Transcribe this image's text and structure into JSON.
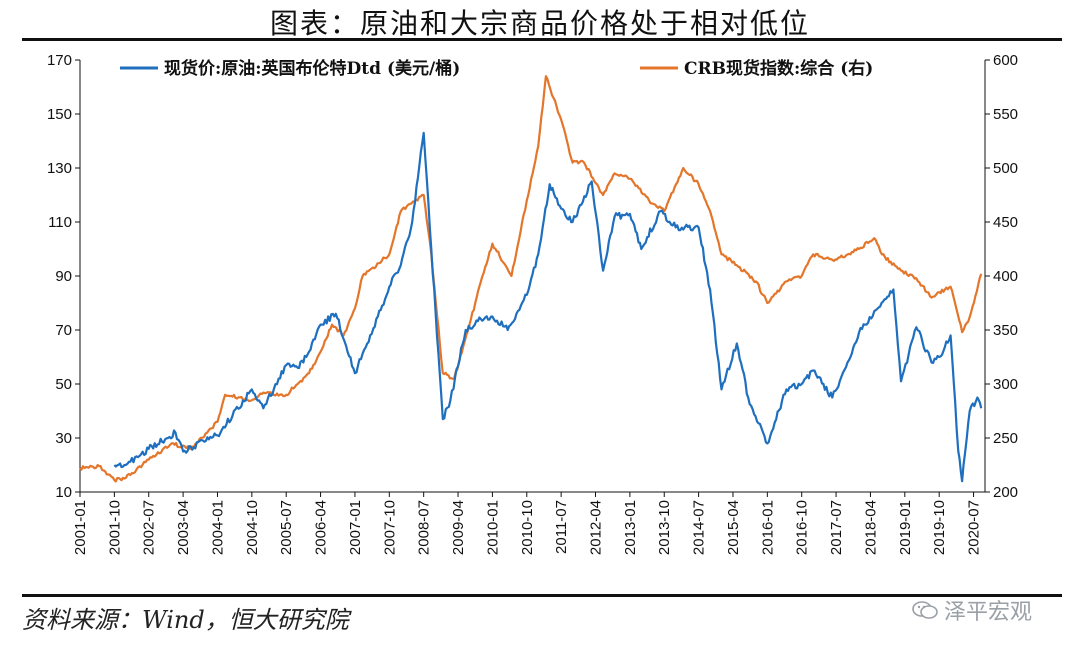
{
  "header": {
    "title": "图表：原油和大宗商品价格处于相对低位"
  },
  "footer": {
    "source": "资料来源：Wind，恒大研究院",
    "watermark": "泽平宏观"
  },
  "chart_data": {
    "type": "line",
    "legend_placement": "top",
    "grid": false,
    "x_ticks": [
      "2001-01",
      "2001-10",
      "2002-07",
      "2003-04",
      "2004-01",
      "2004-10",
      "2005-07",
      "2006-04",
      "2007-01",
      "2007-10",
      "2008-07",
      "2009-04",
      "2010-01",
      "2010-10",
      "2011-07",
      "2012-04",
      "2013-01",
      "2013-10",
      "2014-07",
      "2015-04",
      "2016-01",
      "2016-10",
      "2017-07",
      "2018-04",
      "2019-01",
      "2019-10",
      "2020-07"
    ],
    "y_left": {
      "min": 10,
      "max": 170,
      "ticks": [
        "10",
        "30",
        "50",
        "70",
        "90",
        "110",
        "130",
        "150",
        "170"
      ]
    },
    "y_right": {
      "min": 200,
      "max": 600,
      "ticks": [
        "200",
        "250",
        "300",
        "350",
        "400",
        "450",
        "500",
        "550",
        "600"
      ]
    },
    "series": [
      {
        "name": "现货价:原油:英国布伦特Dtd (美元/桶)",
        "axis": "left",
        "color": "#1f6fbf",
        "points": [
          [
            "2001-10",
            20
          ],
          [
            "2002-01",
            20
          ],
          [
            "2002-07",
            26
          ],
          [
            "2003-02",
            32
          ],
          [
            "2003-04",
            25
          ],
          [
            "2003-10",
            29
          ],
          [
            "2004-01",
            31
          ],
          [
            "2004-10",
            48
          ],
          [
            "2005-01",
            41
          ],
          [
            "2005-07",
            57
          ],
          [
            "2005-10",
            56
          ],
          [
            "2006-01",
            62
          ],
          [
            "2006-04",
            72
          ],
          [
            "2006-08",
            76
          ],
          [
            "2007-01",
            54
          ],
          [
            "2007-07",
            75
          ],
          [
            "2007-10",
            86
          ],
          [
            "2008-01",
            94
          ],
          [
            "2008-04",
            110
          ],
          [
            "2008-07",
            143
          ],
          [
            "2008-09",
            100
          ],
          [
            "2008-12",
            37
          ],
          [
            "2009-02",
            44
          ],
          [
            "2009-06",
            70
          ],
          [
            "2009-10",
            74
          ],
          [
            "2010-01",
            75
          ],
          [
            "2010-05",
            70
          ],
          [
            "2010-10",
            83
          ],
          [
            "2011-01",
            98
          ],
          [
            "2011-04",
            124
          ],
          [
            "2011-07",
            115
          ],
          [
            "2011-10",
            110
          ],
          [
            "2012-03",
            125
          ],
          [
            "2012-06",
            92
          ],
          [
            "2012-09",
            112
          ],
          [
            "2013-01",
            113
          ],
          [
            "2013-04",
            100
          ],
          [
            "2013-09",
            114
          ],
          [
            "2014-01",
            108
          ],
          [
            "2014-07",
            108
          ],
          [
            "2014-10",
            85
          ],
          [
            "2015-01",
            48
          ],
          [
            "2015-05",
            65
          ],
          [
            "2015-08",
            45
          ],
          [
            "2016-01",
            28
          ],
          [
            "2016-06",
            48
          ],
          [
            "2016-10",
            50
          ],
          [
            "2017-01",
            55
          ],
          [
            "2017-06",
            45
          ],
          [
            "2017-10",
            58
          ],
          [
            "2018-01",
            69
          ],
          [
            "2018-05",
            77
          ],
          [
            "2018-10",
            85
          ],
          [
            "2018-12",
            51
          ],
          [
            "2019-04",
            71
          ],
          [
            "2019-08",
            58
          ],
          [
            "2019-10",
            60
          ],
          [
            "2020-01",
            68
          ],
          [
            "2020-03",
            25
          ],
          [
            "2020-04",
            14
          ],
          [
            "2020-06",
            40
          ],
          [
            "2020-08",
            45
          ],
          [
            "2020-09",
            41
          ]
        ]
      },
      {
        "name": "CRB现货指数:综合 (右)",
        "axis": "right",
        "color": "#e4762b",
        "points": [
          [
            "2001-01",
            222
          ],
          [
            "2001-06",
            224
          ],
          [
            "2001-10",
            211
          ],
          [
            "2002-01",
            213
          ],
          [
            "2002-07",
            230
          ],
          [
            "2003-01",
            245
          ],
          [
            "2003-06",
            240
          ],
          [
            "2004-01",
            265
          ],
          [
            "2004-03",
            290
          ],
          [
            "2004-10",
            285
          ],
          [
            "2005-01",
            292
          ],
          [
            "2005-07",
            290
          ],
          [
            "2005-10",
            300
          ],
          [
            "2006-01",
            310
          ],
          [
            "2006-04",
            330
          ],
          [
            "2006-07",
            355
          ],
          [
            "2006-10",
            345
          ],
          [
            "2007-01",
            370
          ],
          [
            "2007-03",
            400
          ],
          [
            "2007-10",
            420
          ],
          [
            "2008-01",
            460
          ],
          [
            "2008-07",
            475
          ],
          [
            "2008-09",
            420
          ],
          [
            "2008-12",
            310
          ],
          [
            "2009-03",
            305
          ],
          [
            "2009-07",
            355
          ],
          [
            "2009-10",
            395
          ],
          [
            "2010-01",
            430
          ],
          [
            "2010-06",
            400
          ],
          [
            "2010-10",
            470
          ],
          [
            "2011-01",
            520
          ],
          [
            "2011-03",
            585
          ],
          [
            "2011-07",
            545
          ],
          [
            "2011-10",
            505
          ],
          [
            "2012-01",
            505
          ],
          [
            "2012-06",
            475
          ],
          [
            "2012-09",
            495
          ],
          [
            "2013-01",
            490
          ],
          [
            "2013-06",
            470
          ],
          [
            "2013-10",
            460
          ],
          [
            "2014-03",
            500
          ],
          [
            "2014-07",
            485
          ],
          [
            "2014-10",
            460
          ],
          [
            "2015-01",
            420
          ],
          [
            "2015-05",
            410
          ],
          [
            "2015-10",
            395
          ],
          [
            "2016-01",
            375
          ],
          [
            "2016-06",
            395
          ],
          [
            "2016-10",
            400
          ],
          [
            "2017-01",
            420
          ],
          [
            "2017-06",
            415
          ],
          [
            "2017-10",
            420
          ],
          [
            "2018-01",
            425
          ],
          [
            "2018-05",
            435
          ],
          [
            "2018-07",
            420
          ],
          [
            "2018-12",
            405
          ],
          [
            "2019-04",
            398
          ],
          [
            "2019-08",
            380
          ],
          [
            "2019-10",
            385
          ],
          [
            "2020-01",
            390
          ],
          [
            "2020-04",
            348
          ],
          [
            "2020-06",
            362
          ],
          [
            "2020-09",
            402
          ]
        ]
      }
    ]
  }
}
